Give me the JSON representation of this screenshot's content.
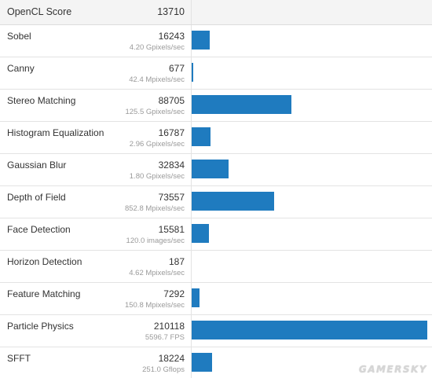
{
  "header": {
    "label": "OpenCL Score",
    "score": "13710"
  },
  "benchmarks": [
    {
      "name": "Sobel",
      "score": "16243",
      "unit": "4.20 Gpixels/sec",
      "value": 16243
    },
    {
      "name": "Canny",
      "score": "677",
      "unit": "42.4 Mpixels/sec",
      "value": 677
    },
    {
      "name": "Stereo Matching",
      "score": "88705",
      "unit": "125.5 Gpixels/sec",
      "value": 88705
    },
    {
      "name": "Histogram Equalization",
      "score": "16787",
      "unit": "2.96 Gpixels/sec",
      "value": 16787
    },
    {
      "name": "Gaussian Blur",
      "score": "32834",
      "unit": "1.80 Gpixels/sec",
      "value": 32834
    },
    {
      "name": "Depth of Field",
      "score": "73557",
      "unit": "852.8 Mpixels/sec",
      "value": 73557
    },
    {
      "name": "Face Detection",
      "score": "15581",
      "unit": "120.0 images/sec",
      "value": 15581
    },
    {
      "name": "Horizon Detection",
      "score": "187",
      "unit": "4.62 Mpixels/sec",
      "value": 187
    },
    {
      "name": "Feature Matching",
      "score": "7292",
      "unit": "150.8 Mpixels/sec",
      "value": 7292
    },
    {
      "name": "Particle Physics",
      "score": "210118",
      "unit": "5596.7 FPS",
      "value": 210118
    },
    {
      "name": "SFFT",
      "score": "18224",
      "unit": "251.0 Gflops",
      "value": 18224
    }
  ],
  "bar_max": 210118,
  "colors": {
    "bar": "#1f7bbf",
    "header_bg": "#f4f4f4",
    "border": "#e3e3e3",
    "unit_text": "#9a9a9a"
  },
  "watermark": "GAMERSKY"
}
